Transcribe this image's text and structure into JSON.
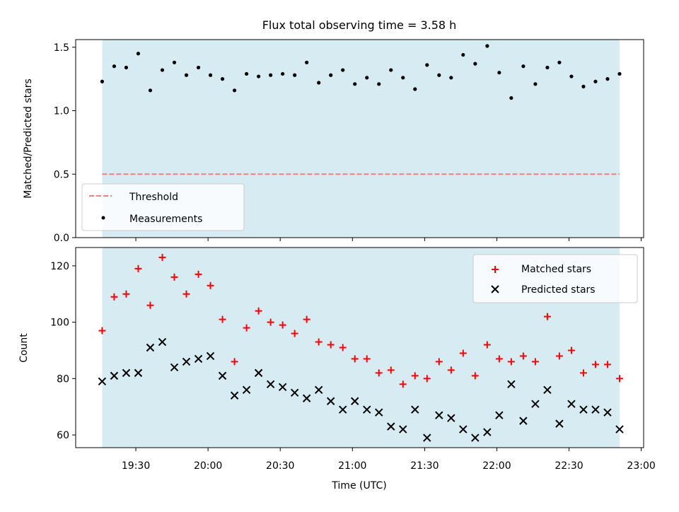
{
  "chart_data": {
    "type": "scatter",
    "title": "Flux total observing time = 3.58 h",
    "xlabel": "Time (UTC)",
    "x_ticks": [
      "19:30",
      "20:00",
      "20:30",
      "21:00",
      "21:30",
      "22:00",
      "22:30",
      "23:00"
    ],
    "shaded_span": {
      "start": "19:16",
      "end": "22:51",
      "color": "#add8e6"
    },
    "panels": [
      {
        "name": "ratio",
        "ylabel": "Matched/Predicted stars",
        "ylim": [
          0,
          1.56
        ],
        "y_ticks": [
          0.0,
          0.5,
          1.0,
          1.5
        ],
        "y_tick_labels": [
          "0.0",
          "0.5",
          "1.0",
          "1.5"
        ],
        "legend": "lower-left",
        "series": [
          {
            "name": "Threshold",
            "style": "dashed-line",
            "color": "#f08080",
            "value": 0.5
          },
          {
            "name": "Measurements",
            "style": "dot",
            "color": "#000000"
          }
        ]
      },
      {
        "name": "counts",
        "ylabel": "Count",
        "ylim": [
          55.5,
          126.5
        ],
        "y_ticks": [
          60,
          80,
          100,
          120
        ],
        "y_tick_labels": [
          "60",
          "80",
          "100",
          "120"
        ],
        "legend": "upper-right",
        "series": [
          {
            "name": "Matched stars",
            "marker": "plus",
            "color": "#ff0000"
          },
          {
            "name": "Predicted stars",
            "marker": "x",
            "color": "#000000"
          }
        ]
      }
    ],
    "x": [
      "19:16",
      "19:21",
      "19:26",
      "19:31",
      "19:36",
      "19:41",
      "19:46",
      "19:51",
      "19:56",
      "20:01",
      "20:06",
      "20:11",
      "20:16",
      "20:21",
      "20:26",
      "20:31",
      "20:36",
      "20:41",
      "20:46",
      "20:51",
      "20:56",
      "21:01",
      "21:06",
      "21:11",
      "21:16",
      "21:21",
      "21:26",
      "21:31",
      "21:36",
      "21:41",
      "21:46",
      "21:51",
      "21:56",
      "22:01",
      "22:06",
      "22:11",
      "22:16",
      "22:21",
      "22:26",
      "22:31",
      "22:36",
      "22:41",
      "22:46",
      "22:51"
    ],
    "matched": [
      97,
      109,
      110,
      119,
      106,
      123,
      116,
      110,
      117,
      113,
      101,
      86,
      98,
      104,
      100,
      99,
      96,
      101,
      93,
      92,
      91,
      87,
      87,
      82,
      83,
      78,
      81,
      80,
      86,
      83,
      89,
      81,
      92,
      87,
      86,
      88,
      86,
      102,
      88,
      90,
      82,
      85,
      85,
      80
    ],
    "predicted": [
      79,
      81,
      82,
      82,
      91,
      93,
      84,
      86,
      87,
      88,
      81,
      74,
      76,
      82,
      78,
      77,
      75,
      73,
      76,
      72,
      69,
      72,
      69,
      68,
      63,
      62,
      69,
      59,
      67,
      66,
      62,
      59,
      61,
      67,
      78,
      65,
      71,
      76,
      64,
      71,
      69,
      69,
      68,
      62
    ],
    "ratio": [
      1.23,
      1.35,
      1.34,
      1.45,
      1.16,
      1.32,
      1.38,
      1.28,
      1.34,
      1.28,
      1.25,
      1.16,
      1.29,
      1.27,
      1.28,
      1.29,
      1.28,
      1.38,
      1.22,
      1.28,
      1.32,
      1.21,
      1.26,
      1.21,
      1.32,
      1.26,
      1.17,
      1.36,
      1.28,
      1.26,
      1.44,
      1.37,
      1.51,
      1.3,
      1.1,
      1.35,
      1.21,
      1.34,
      1.38,
      1.27,
      1.19,
      1.23,
      1.25,
      1.29
    ]
  }
}
